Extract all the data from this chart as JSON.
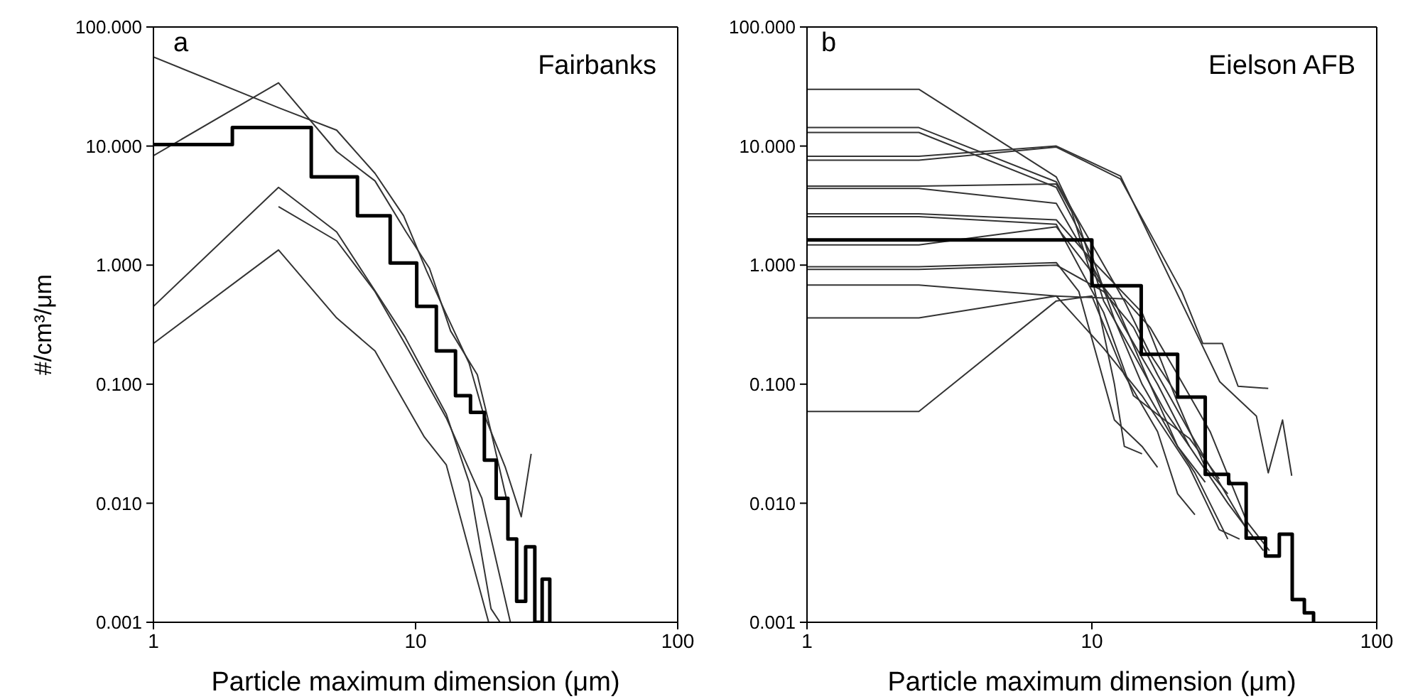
{
  "chart_data": [
    {
      "type": "line",
      "annotations": [
        "a",
        "Fairbanks"
      ],
      "xlabel": "Particle maximum dimension (μm)",
      "ylabel": "#/cm³/μm",
      "log": "xy",
      "xlim": [
        1,
        100
      ],
      "ylim": [
        0.001,
        100
      ],
      "xticks": [
        1,
        10,
        100
      ],
      "yticks": [
        {
          "value": 0.001,
          "label": "0.001"
        },
        {
          "value": 0.01,
          "label": "0.010"
        },
        {
          "value": 0.1,
          "label": "0.100"
        },
        {
          "value": 1,
          "label": "1.000"
        },
        {
          "value": 10,
          "label": "10.000"
        },
        {
          "value": 100,
          "label": "100.000"
        }
      ],
      "series": [
        {
          "type": "line",
          "color": "#333333",
          "x": [
            1,
            3,
            5,
            7,
            9,
            11,
            13,
            16,
            18,
            22,
            25.3,
            27.6
          ],
          "values": [
            56,
            21,
            13.6,
            5.9,
            2.6,
            0.9,
            0.4,
            0.15,
            0.06,
            0.02,
            0.0077,
            0.026
          ]
        },
        {
          "type": "line",
          "color": "#333333",
          "x": [
            1,
            3,
            5,
            7,
            9.2,
            11.3,
            13.6,
            17.2,
            19.4,
            22.2
          ],
          "values": [
            8.3,
            34,
            9,
            5.1,
            1.9,
            0.94,
            0.28,
            0.12,
            0.04,
            0.011
          ]
        },
        {
          "type": "line",
          "color": "#333333",
          "x": [
            1,
            3,
            5,
            7,
            9.1,
            13.1,
            16,
            19.4,
            21
          ],
          "values": [
            0.45,
            4.5,
            1.9,
            0.61,
            0.25,
            0.056,
            0.015,
            0.0013,
            0.001
          ]
        },
        {
          "type": "line",
          "color": "#333333",
          "x": [
            3,
            5,
            7,
            9.2,
            13.1,
            17.9,
            23
          ],
          "values": [
            3.1,
            1.6,
            0.6,
            0.21,
            0.052,
            0.011,
            0.001
          ]
        },
        {
          "type": "line",
          "color": "#333333",
          "x": [
            1,
            3,
            5,
            7,
            10.8,
            13.1,
            16.6,
            19
          ],
          "values": [
            0.22,
            1.34,
            0.36,
            0.19,
            0.036,
            0.021,
            0.003,
            0.001
          ]
        },
        {
          "type": "step",
          "color": "#000000",
          "x": [
            1,
            2,
            4,
            6,
            8,
            10.1,
            12,
            14.2,
            16.2,
            18.3,
            20.3,
            22.5,
            24.3,
            26.3,
            28.5,
            30.4,
            32.5
          ],
          "values": [
            10.3,
            14.3,
            5.5,
            2.6,
            1.04,
            0.45,
            0.19,
            0.08,
            0.058,
            0.023,
            0.011,
            0.005,
            0.0015,
            0.0043,
            0.001,
            0.0023,
            0.001
          ]
        }
      ]
    },
    {
      "type": "line",
      "annotations": [
        "b",
        "Eielson AFB"
      ],
      "xlabel": "Particle maximum dimension (μm)",
      "log": "xy",
      "xlim": [
        1,
        100
      ],
      "ylim": [
        0.001,
        100
      ],
      "xticks": [
        1,
        10,
        100
      ],
      "yticks": [
        {
          "value": 0.001,
          "label": "0.001"
        },
        {
          "value": 0.01,
          "label": "0.010"
        },
        {
          "value": 0.1,
          "label": "0.100"
        },
        {
          "value": 1,
          "label": "1.000"
        },
        {
          "value": 10,
          "label": "10.000"
        },
        {
          "value": 100,
          "label": "100.000"
        }
      ],
      "series": [
        {
          "type": "line",
          "color": "#333333",
          "x": [
            1,
            2.47,
            7.5,
            9,
            11,
            14,
            18,
            22
          ],
          "values": [
            30,
            30,
            5.5,
            2.2,
            0.5,
            0.18,
            0.06,
            0.03
          ]
        },
        {
          "type": "line",
          "color": "#333333",
          "x": [
            1,
            2.47,
            7.5,
            10,
            13,
            16,
            20
          ],
          "values": [
            14.3,
            14.3,
            5,
            1.5,
            0.5,
            0.18,
            0.08
          ]
        },
        {
          "type": "line",
          "color": "#333333",
          "x": [
            1,
            2.47,
            7.5,
            10,
            12,
            15,
            20,
            25
          ],
          "values": [
            13,
            13,
            4.5,
            1.2,
            0.35,
            0.1,
            0.03,
            0.015
          ]
        },
        {
          "type": "line",
          "color": "#333333",
          "x": [
            1,
            2.47,
            7.5,
            12.6,
            28.1,
            37.8,
            41.6,
            46.7,
            50.3
          ],
          "values": [
            8.2,
            8.2,
            10,
            5.6,
            0.105,
            0.054,
            0.018,
            0.05,
            0.017
          ]
        },
        {
          "type": "line",
          "color": "#333333",
          "x": [
            1,
            2.47,
            7.5,
            12.6,
            20.7,
            24.5,
            28.7,
            32.6,
            41.6
          ],
          "values": [
            7.6,
            7.6,
            9.8,
            5.3,
            0.6,
            0.22,
            0.22,
            0.096,
            0.092
          ]
        },
        {
          "type": "line",
          "color": "#333333",
          "x": [
            1,
            2.47,
            7.5,
            8.5,
            10,
            12,
            13,
            15
          ],
          "values": [
            4.6,
            4.6,
            4.8,
            2.8,
            0.8,
            0.1,
            0.03,
            0.026
          ]
        },
        {
          "type": "line",
          "color": "#333333",
          "x": [
            1,
            2.47,
            7.5,
            10,
            13,
            17,
            22,
            30,
            40
          ],
          "values": [
            4.4,
            4.4,
            3.3,
            1,
            0.3,
            0.1,
            0.03,
            0.01,
            0.004
          ]
        },
        {
          "type": "line",
          "color": "#333333",
          "x": [
            1,
            2.47,
            7.5,
            10,
            15,
            20,
            25,
            30
          ],
          "values": [
            2.7,
            2.7,
            2.4,
            1.1,
            0.4,
            0.07,
            0.02,
            0.012
          ]
        },
        {
          "type": "line",
          "color": "#333333",
          "x": [
            1,
            2.47,
            7.5,
            11,
            14,
            18,
            22,
            28
          ],
          "values": [
            2.55,
            2.55,
            2.2,
            0.4,
            0.08,
            0.05,
            0.035,
            0.016
          ]
        },
        {
          "type": "line",
          "color": "#333333",
          "x": [
            1,
            2.47,
            7.5,
            12,
            16,
            20,
            23,
            30
          ],
          "values": [
            1.48,
            1.48,
            2.1,
            0.5,
            0.1,
            0.03,
            0.018,
            0.005
          ]
        },
        {
          "type": "line",
          "color": "#333333",
          "x": [
            1,
            2.47,
            7.5,
            9,
            12,
            15,
            17
          ],
          "values": [
            0.97,
            0.97,
            1.05,
            0.6,
            0.05,
            0.03,
            0.02
          ]
        },
        {
          "type": "line",
          "color": "#333333",
          "x": [
            1,
            2.47,
            7.5,
            11,
            14,
            17,
            22,
            28,
            35
          ],
          "values": [
            0.92,
            0.92,
            1,
            0.6,
            0.3,
            0.12,
            0.04,
            0.015,
            0.006
          ]
        },
        {
          "type": "line",
          "color": "#333333",
          "x": [
            1,
            2.47,
            7.5,
            11,
            15,
            22,
            28,
            33
          ],
          "values": [
            0.68,
            0.68,
            0.55,
            0.2,
            0.08,
            0.02,
            0.006,
            0.005
          ]
        },
        {
          "type": "line",
          "color": "#333333",
          "x": [
            1,
            2.47,
            7.5,
            13,
            16,
            20,
            26,
            35,
            42
          ],
          "values": [
            0.36,
            0.36,
            0.55,
            0.52,
            0.3,
            0.12,
            0.04,
            0.007,
            0.004
          ]
        },
        {
          "type": "line",
          "color": "#333333",
          "x": [
            1,
            2.47,
            7.5,
            10,
            13,
            17,
            20,
            23
          ],
          "values": [
            0.059,
            0.059,
            0.5,
            0.55,
            0.12,
            0.04,
            0.012,
            0.008
          ]
        },
        {
          "type": "step",
          "color": "#000000",
          "x": [
            1,
            10,
            14.9,
            20,
            25,
            30.2,
            34.8,
            40.7,
            45.5,
            50.5,
            55.7,
            60
          ],
          "values": [
            1.63,
            0.67,
            0.178,
            0.078,
            0.0175,
            0.0146,
            0.0051,
            0.0036,
            0.0055,
            0.00155,
            0.0012,
            0.001
          ]
        }
      ]
    }
  ]
}
